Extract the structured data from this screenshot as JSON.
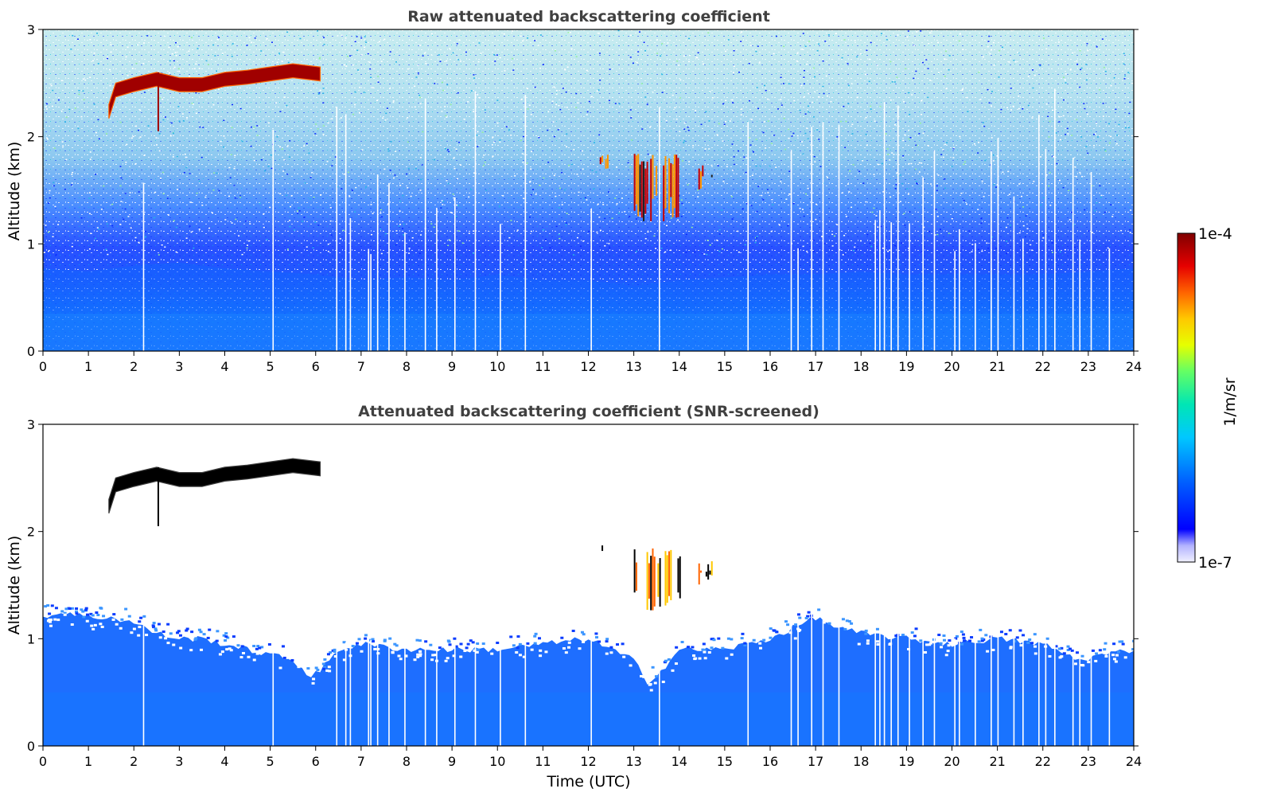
{
  "chart_data": [
    {
      "type": "heatmap",
      "title": "Raw attenuated backscattering coefficient",
      "xlabel": "",
      "ylabel": "Altitude (km)",
      "xlim": [
        0,
        24
      ],
      "ylim": [
        0,
        3
      ],
      "x_ticks": [
        "0",
        "1",
        "2",
        "3",
        "4",
        "5",
        "6",
        "7",
        "8",
        "9",
        "10",
        "11",
        "12",
        "13",
        "14",
        "15",
        "16",
        "17",
        "18",
        "19",
        "20",
        "21",
        "22",
        "23",
        "24"
      ],
      "y_ticks": [
        "0",
        "1",
        "2",
        "3"
      ],
      "boundary_layer_top_km": [
        [
          0,
          1.4
        ],
        [
          1,
          1.35
        ],
        [
          2,
          1.45
        ],
        [
          3,
          1.5
        ],
        [
          4,
          1.4
        ],
        [
          5,
          1.35
        ],
        [
          6,
          1.3
        ],
        [
          7,
          1.2
        ],
        [
          8,
          1.25
        ],
        [
          9,
          1.2
        ],
        [
          10,
          1.3
        ],
        [
          11,
          1.2
        ],
        [
          12,
          1.2
        ],
        [
          13,
          1.1
        ],
        [
          14,
          1.2
        ],
        [
          15,
          1.25
        ],
        [
          16,
          1.3
        ],
        [
          17,
          1.3
        ],
        [
          18,
          1.35
        ],
        [
          19,
          1.3
        ],
        [
          20,
          1.3
        ],
        [
          21,
          1.3
        ],
        [
          22,
          1.3
        ],
        [
          23,
          1.35
        ],
        [
          24,
          1.4
        ]
      ],
      "cloud_layer_top_km": [
        [
          1.45,
          2.3
        ],
        [
          1.6,
          2.5
        ],
        [
          2.0,
          2.55
        ],
        [
          2.5,
          2.6
        ],
        [
          3.0,
          2.55
        ],
        [
          3.5,
          2.55
        ],
        [
          4.0,
          2.6
        ],
        [
          4.5,
          2.62
        ],
        [
          5.0,
          2.65
        ],
        [
          5.5,
          2.68
        ],
        [
          6.1,
          2.65
        ]
      ],
      "convective_cells": [
        {
          "t_start": 12.25,
          "t_end": 12.45,
          "alt_min_km": 1.7,
          "alt_max_km": 1.9
        },
        {
          "t_start": 13.0,
          "t_end": 14.0,
          "alt_min_km": 1.2,
          "alt_max_km": 1.85
        },
        {
          "t_start": 14.3,
          "t_end": 14.7,
          "alt_min_km": 1.5,
          "alt_max_km": 1.75
        }
      ],
      "data_gaps_hours": [
        2.2,
        5.05,
        6.45,
        6.65,
        6.75,
        7.15,
        7.2,
        7.35,
        7.6,
        7.95,
        8.4,
        8.65,
        9.05,
        9.5,
        10.05,
        10.6,
        12.05,
        13.55,
        15.5,
        16.45,
        16.6,
        16.9,
        17.15,
        17.5,
        18.3,
        18.4,
        18.5,
        18.65,
        18.8,
        19.05,
        19.35,
        19.6,
        20.05,
        20.15,
        20.5,
        20.85,
        21.0,
        21.35,
        21.55,
        21.9,
        22.05,
        22.25,
        22.65,
        22.8,
        23.05,
        23.45
      ]
    },
    {
      "type": "heatmap",
      "title": "Attenuated backscattering coefficient (SNR-screened)",
      "xlabel": "Time (UTC)",
      "ylabel": "Altitude (km)",
      "xlim": [
        0,
        24
      ],
      "ylim": [
        0,
        3
      ],
      "x_ticks": [
        "0",
        "1",
        "2",
        "3",
        "4",
        "5",
        "6",
        "7",
        "8",
        "9",
        "10",
        "11",
        "12",
        "13",
        "14",
        "15",
        "16",
        "17",
        "18",
        "19",
        "20",
        "21",
        "22",
        "23",
        "24"
      ],
      "y_ticks": [
        "0",
        "1",
        "2",
        "3"
      ],
      "screened_layer_top_km": [
        [
          0,
          1.2
        ],
        [
          0.5,
          1.25
        ],
        [
          1,
          1.2
        ],
        [
          1.5,
          1.2
        ],
        [
          2,
          1.15
        ],
        [
          2.5,
          1.05
        ],
        [
          3,
          1.0
        ],
        [
          3.5,
          1.0
        ],
        [
          4,
          0.95
        ],
        [
          4.5,
          0.9
        ],
        [
          5,
          0.85
        ],
        [
          5.5,
          0.8
        ],
        [
          5.9,
          0.65
        ],
        [
          6.1,
          0.7
        ],
        [
          6.5,
          0.9
        ],
        [
          7,
          0.95
        ],
        [
          8,
          0.9
        ],
        [
          9,
          0.9
        ],
        [
          10,
          0.9
        ],
        [
          11,
          0.95
        ],
        [
          12,
          1.0
        ],
        [
          12.5,
          0.9
        ],
        [
          13,
          0.8
        ],
        [
          13.3,
          0.6
        ],
        [
          13.6,
          0.7
        ],
        [
          14,
          0.9
        ],
        [
          15,
          0.9
        ],
        [
          15.5,
          0.95
        ],
        [
          16,
          1.0
        ],
        [
          16.5,
          1.1
        ],
        [
          17,
          1.2
        ],
        [
          17.5,
          1.1
        ],
        [
          18,
          1.05
        ],
        [
          19,
          1.0
        ],
        [
          20,
          0.95
        ],
        [
          21,
          1.0
        ],
        [
          22,
          0.95
        ],
        [
          22.8,
          0.8
        ],
        [
          23.3,
          0.85
        ],
        [
          24,
          0.9
        ]
      ]
    }
  ],
  "colorbar": {
    "label": "1/m/sr",
    "max_label": "1e-4",
    "min_label": "1e-7",
    "scale": "log",
    "colormap": "jet",
    "colors": [
      "#e6e6ff",
      "#b3b3ff",
      "#0000ff",
      "#0050ff",
      "#0096ff",
      "#00c8ff",
      "#00e6c8",
      "#64ff64",
      "#c8ff00",
      "#ffe600",
      "#ff9600",
      "#ff3200",
      "#c80000",
      "#800000"
    ]
  }
}
